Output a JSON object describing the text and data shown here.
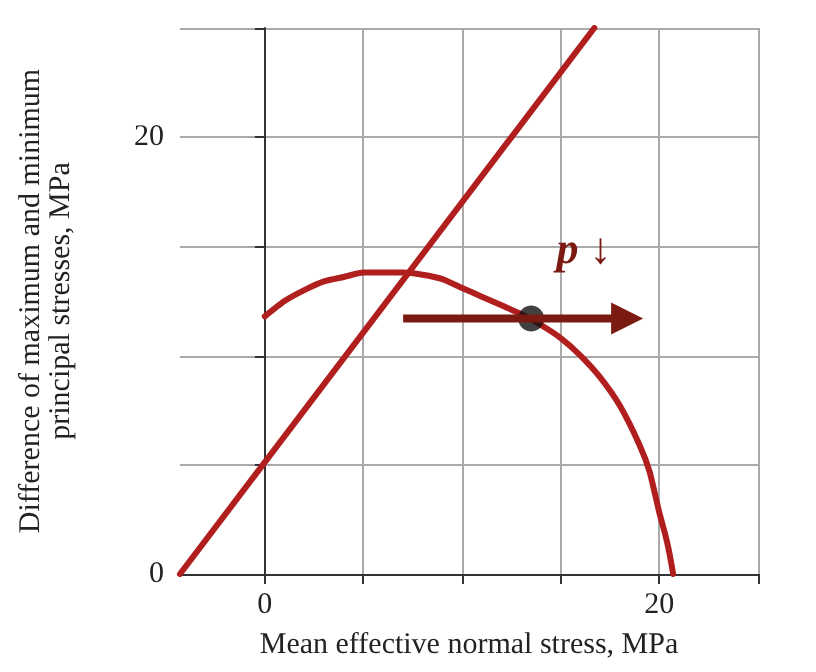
{
  "chart_data": {
    "type": "line",
    "xlabel": "Mean effective normal stress, MPa",
    "ylabel": "Difference of maximum and minimum\nprincipal stresses, MPa",
    "xlim": [
      -4.3,
      25
    ],
    "ylim": [
      0,
      25
    ],
    "xticks": [
      {
        "value": 0,
        "label": "0"
      },
      {
        "value": 5,
        "label": null
      },
      {
        "value": 10,
        "label": null
      },
      {
        "value": 15,
        "label": null
      },
      {
        "value": 20,
        "label": "20"
      },
      {
        "value": 25,
        "label": null
      }
    ],
    "yticks": [
      {
        "value": 0,
        "label": "0"
      },
      {
        "value": 5,
        "label": null
      },
      {
        "value": 10,
        "label": null
      },
      {
        "value": 15,
        "label": null
      },
      {
        "value": 20,
        "label": "20"
      },
      {
        "value": 25,
        "label": null
      }
    ],
    "grid": true,
    "marker": "none",
    "series": [
      {
        "color": "#b01e1e",
        "x": [
          -4.3,
          16.7
        ],
        "values": [
          0,
          25
        ]
      },
      {
        "color": "#b01e1e",
        "x": [
          0,
          1,
          2,
          3,
          4,
          5,
          6,
          7,
          8,
          9,
          10,
          11,
          12,
          13,
          14,
          15,
          16,
          17,
          18,
          19,
          19.5,
          20,
          20.3,
          20.5,
          20.7
        ],
        "values": [
          11.8,
          12.5,
          13,
          13.4,
          13.6,
          13.8,
          13.8,
          13.8,
          13.7,
          13.5,
          13.1,
          12.7,
          12.3,
          11.9,
          11.4,
          10.8,
          10,
          9,
          7.7,
          5.9,
          4.7,
          2.8,
          1.8,
          1,
          0
        ]
      },
      {
        "type": "scatter",
        "color": "#111111",
        "marker": "circle",
        "x": [
          13.5
        ],
        "values": [
          11.7
        ]
      }
    ],
    "annotations": [
      "p ↓"
    ]
  }
}
